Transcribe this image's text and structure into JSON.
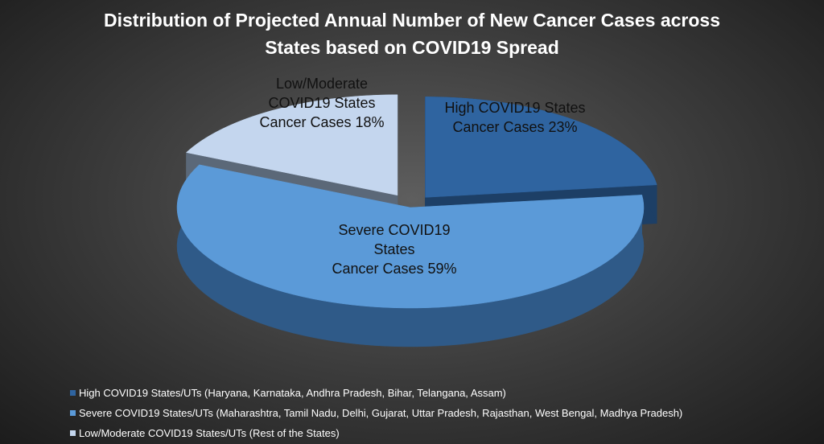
{
  "chart_data": {
    "type": "pie",
    "style": "3d-exploded",
    "title_lines": [
      "Distribution of Projected Annual Number of New Cancer Cases across",
      "States based on COVID19 Spread"
    ],
    "slices": [
      {
        "name": "High COVID19 States/UTs (Haryana, Karnataka, Andhra Pradesh, Bihar, Telangana, Assam)",
        "value": 23,
        "label_lines": [
          "High COVID19 States",
          "Cancer Cases 23%"
        ],
        "color": "#2f64a0",
        "side": "#1d3f66"
      },
      {
        "name": "Severe COVID19 States/UTs (Maharashtra, Tamil Nadu, Delhi, Gujarat, Uttar Pradesh, Rajasthan, West Bengal, Madhya Pradesh)",
        "value": 59,
        "label_lines": [
          "Severe COVID19",
          "States",
          "Cancer Cases 59%"
        ],
        "color": "#5b9ad8",
        "side": "#2f5a88"
      },
      {
        "name": "Low/Moderate COVID19 States/UTs (Rest of the States)",
        "value": 18,
        "label_lines": [
          "Low/Moderate",
          "COVID19 States",
          "Cancer Cases 18%"
        ],
        "color": "#c4d6ee",
        "side": "#5b6878"
      }
    ],
    "legend_position": "bottom-left"
  }
}
